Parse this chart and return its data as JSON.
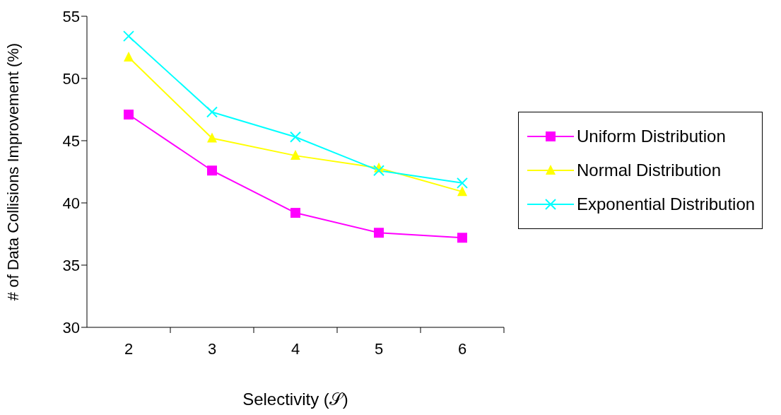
{
  "chart_data": {
    "type": "line",
    "xlabel": "Selectivity (𝒮)",
    "ylabel": "# of Data Collisions Improvement (%)",
    "categories": [
      "2",
      "3",
      "4",
      "5",
      "6"
    ],
    "ylim": [
      30,
      55
    ],
    "yticks": [
      30,
      35,
      40,
      45,
      50,
      55
    ],
    "grid": false,
    "legend": "right",
    "line_style": "solid",
    "series": [
      {
        "name": "Uniform Distribution",
        "color": "#ff00ff",
        "marker": "square",
        "values": [
          47.1,
          42.6,
          39.2,
          37.6,
          37.2
        ]
      },
      {
        "name": "Normal Distribution",
        "color": "#ffff00",
        "marker": "triangle",
        "values": [
          51.7,
          45.2,
          43.8,
          42.8,
          40.9
        ]
      },
      {
        "name": "Exponential Distribution",
        "color": "#00ffff",
        "marker": "cross",
        "values": [
          53.4,
          47.3,
          45.3,
          42.6,
          41.6
        ]
      }
    ]
  }
}
